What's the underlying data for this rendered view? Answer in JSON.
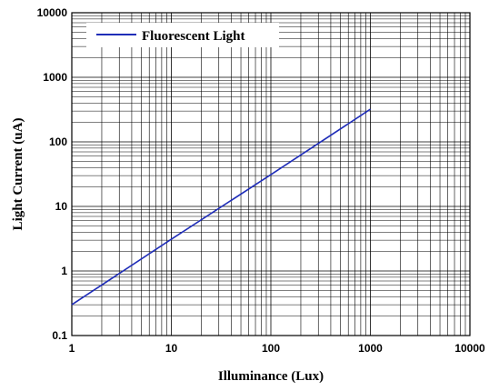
{
  "chart_data": {
    "type": "line",
    "title": "",
    "xlabel": "Illuminance (Lux)",
    "ylabel": "Light Current (uA)",
    "xscale": "log",
    "yscale": "log",
    "xlim": [
      1,
      10000
    ],
    "ylim": [
      0.1,
      10000
    ],
    "x_ticks": [
      "1",
      "10",
      "100",
      "1000",
      "10000"
    ],
    "y_ticks": [
      "0.1",
      "1",
      "10",
      "100",
      "1000",
      "10000"
    ],
    "grid": true,
    "legend_position": "top-left",
    "series": [
      {
        "name": "Fluorescent Light",
        "color": "#1f2db8",
        "x": [
          1,
          10,
          100,
          1000
        ],
        "y": [
          0.3,
          3.1,
          31,
          320
        ]
      }
    ]
  }
}
